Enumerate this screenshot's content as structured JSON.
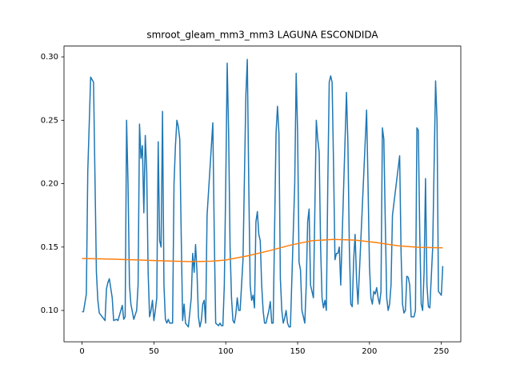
{
  "chart_data": {
    "type": "line",
    "title": "smroot_gleam_mm3_mm3 LAGUNA ESCONDIDA",
    "xlim": [
      -12.55,
      263.55
    ],
    "xticks": [
      0,
      50,
      100,
      150,
      200,
      250
    ],
    "ylim": [
      0.0753,
      0.3085
    ],
    "yticks": [
      {
        "value": 0.1,
        "label": "0.10"
      },
      0.15,
      {
        "value": 0.2,
        "label": "0.20"
      },
      0.25,
      {
        "value": 0.3,
        "label": "0.30"
      }
    ],
    "series": [
      {
        "color": "#1f77b4",
        "x": [
          0,
          1,
          3,
          4,
          6,
          8,
          10,
          11,
          12,
          14,
          16,
          17,
          18,
          19,
          21,
          22,
          24,
          25,
          27,
          28,
          29,
          30,
          31,
          32,
          33,
          34,
          36,
          38,
          39,
          40,
          41,
          42,
          43,
          44,
          45,
          46,
          47,
          48,
          49,
          50,
          51,
          52,
          53,
          54,
          55,
          56,
          57,
          58,
          59,
          60,
          61,
          63,
          64,
          65,
          66,
          67,
          68,
          69,
          70,
          71,
          72,
          74,
          76,
          77,
          78,
          79,
          80,
          81,
          82,
          83,
          84,
          85,
          86,
          87,
          91,
          92,
          93,
          95,
          96,
          97,
          98,
          99,
          100,
          101,
          102,
          103,
          104,
          105,
          106,
          107,
          108,
          109,
          110,
          112,
          114,
          115,
          116,
          117,
          118,
          119,
          120,
          121,
          122,
          123,
          124,
          125,
          126,
          127,
          128,
          130,
          131,
          132,
          133,
          135,
          136,
          137,
          138,
          139,
          140,
          141,
          142,
          143,
          144,
          145,
          148,
          149,
          150,
          151,
          152,
          153,
          154,
          155,
          156,
          157,
          158,
          159,
          160,
          161,
          163,
          164,
          165,
          166,
          167,
          168,
          169,
          170,
          171,
          172,
          173,
          174,
          175,
          176,
          177,
          178,
          179,
          180,
          184,
          185,
          186,
          187,
          188,
          189,
          190,
          191,
          192,
          193,
          198,
          199,
          200,
          201,
          202,
          203,
          204,
          205,
          206,
          207,
          208,
          209,
          210,
          211,
          212,
          213,
          214,
          215,
          216,
          221,
          222,
          223,
          224,
          225,
          226,
          227,
          228,
          229,
          231,
          232,
          233,
          234,
          235,
          236,
          237,
          238,
          239,
          240,
          241,
          242,
          244,
          246,
          247,
          248,
          250,
          251
        ],
        "values": [
          0.099,
          0.099,
          0.113,
          0.21,
          0.284,
          0.28,
          0.13,
          0.108,
          0.098,
          0.095,
          0.092,
          0.117,
          0.122,
          0.125,
          0.11,
          0.092,
          0.093,
          0.092,
          0.1,
          0.104,
          0.093,
          0.095,
          0.25,
          0.2,
          0.12,
          0.105,
          0.093,
          0.1,
          0.12,
          0.247,
          0.22,
          0.23,
          0.177,
          0.238,
          0.21,
          0.13,
          0.095,
          0.1,
          0.108,
          0.092,
          0.1,
          0.11,
          0.233,
          0.155,
          0.15,
          0.257,
          0.12,
          0.093,
          0.09,
          0.093,
          0.09,
          0.09,
          0.2,
          0.23,
          0.25,
          0.245,
          0.235,
          0.16,
          0.092,
          0.105,
          0.09,
          0.087,
          0.11,
          0.145,
          0.13,
          0.152,
          0.13,
          0.095,
          0.087,
          0.092,
          0.105,
          0.108,
          0.09,
          0.175,
          0.248,
          0.16,
          0.09,
          0.088,
          0.09,
          0.088,
          0.088,
          0.12,
          0.2,
          0.295,
          0.24,
          0.15,
          0.11,
          0.092,
          0.09,
          0.097,
          0.11,
          0.1,
          0.1,
          0.14,
          0.27,
          0.298,
          0.2,
          0.12,
          0.108,
          0.112,
          0.102,
          0.17,
          0.178,
          0.16,
          0.155,
          0.12,
          0.1,
          0.09,
          0.09,
          0.1,
          0.107,
          0.09,
          0.09,
          0.24,
          0.261,
          0.24,
          0.125,
          0.1,
          0.09,
          0.094,
          0.1,
          0.09,
          0.087,
          0.087,
          0.2,
          0.287,
          0.24,
          0.138,
          0.132,
          0.1,
          0.095,
          0.09,
          0.12,
          0.17,
          0.18,
          0.12,
          0.115,
          0.11,
          0.25,
          0.235,
          0.225,
          0.15,
          0.11,
          0.102,
          0.108,
          0.1,
          0.2,
          0.28,
          0.285,
          0.28,
          0.215,
          0.14,
          0.145,
          0.145,
          0.15,
          0.12,
          0.272,
          0.232,
          0.15,
          0.105,
          0.103,
          0.14,
          0.16,
          0.125,
          0.105,
          0.13,
          0.258,
          0.2,
          0.135,
          0.11,
          0.105,
          0.115,
          0.113,
          0.118,
          0.11,
          0.105,
          0.115,
          0.244,
          0.235,
          0.17,
          0.11,
          0.1,
          0.105,
          0.12,
          0.175,
          0.222,
          0.145,
          0.105,
          0.098,
          0.1,
          0.127,
          0.126,
          0.12,
          0.095,
          0.095,
          0.1,
          0.244,
          0.242,
          0.16,
          0.105,
          0.1,
          0.13,
          0.204,
          0.12,
          0.103,
          0.102,
          0.15,
          0.281,
          0.25,
          0.115,
          0.112,
          0.135
        ]
      },
      {
        "color": "#ff7f0e",
        "x": [
          0,
          20,
          40,
          60,
          75,
          90,
          100,
          115,
          130,
          145,
          160,
          175,
          190,
          205,
          220,
          235,
          251
        ],
        "values": [
          0.141,
          0.1405,
          0.1398,
          0.139,
          0.1385,
          0.1388,
          0.1398,
          0.143,
          0.147,
          0.1515,
          0.155,
          0.156,
          0.1555,
          0.1535,
          0.151,
          0.1497,
          0.1494
        ]
      }
    ]
  }
}
